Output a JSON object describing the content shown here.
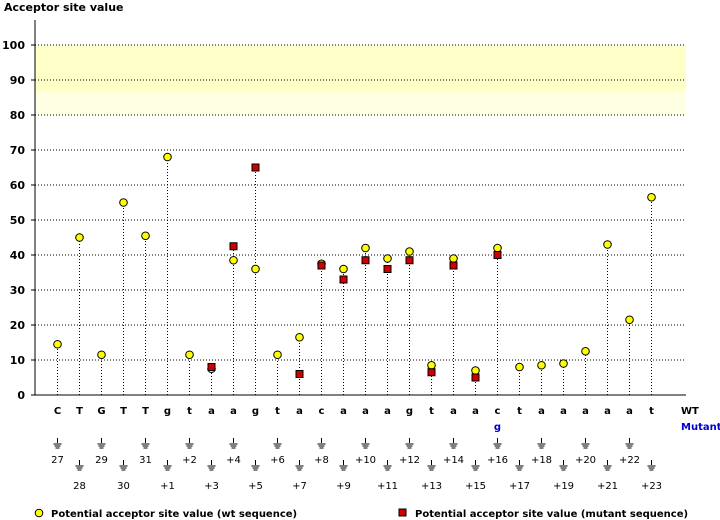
{
  "chart_data": {
    "type": "scatter",
    "title": "Acceptor site value",
    "ylim": [
      0,
      100
    ],
    "yticks": [
      0,
      10,
      20,
      30,
      40,
      50,
      60,
      70,
      80,
      90,
      100
    ],
    "highlight_band": [
      80,
      100
    ],
    "row_labels": {
      "wt": "WT",
      "mutant": "Mutant"
    },
    "positions": [
      {
        "pos": "27",
        "wt": "C",
        "wt_value": 14.5,
        "mut_value": null
      },
      {
        "pos": "28",
        "wt": "T",
        "wt_value": 45,
        "mut_value": null
      },
      {
        "pos": "29",
        "wt": "G",
        "wt_value": 11.5,
        "mut_value": null
      },
      {
        "pos": "30",
        "wt": "T",
        "wt_value": 55,
        "mut_value": null
      },
      {
        "pos": "31",
        "wt": "T",
        "wt_value": 45.5,
        "mut_value": null
      },
      {
        "pos": "+1",
        "wt": "g",
        "wt_value": 68,
        "mut_value": null
      },
      {
        "pos": "+2",
        "wt": "t",
        "wt_value": 11.5,
        "mut_value": null
      },
      {
        "pos": "+3",
        "wt": "a",
        "wt_value": 7.5,
        "mut_value": 8
      },
      {
        "pos": "+4",
        "wt": "a",
        "wt_value": 38.5,
        "mut_value": 42.5
      },
      {
        "pos": "+5",
        "wt": "g",
        "wt_value": 36,
        "mut_value": 65
      },
      {
        "pos": "+6",
        "wt": "t",
        "wt_value": 11.5,
        "mut_value": null
      },
      {
        "pos": "+7",
        "wt": "a",
        "wt_value": 16.5,
        "mut_value": 6
      },
      {
        "pos": "+8",
        "wt": "c",
        "wt_value": 37.5,
        "mut_value": 37
      },
      {
        "pos": "+9",
        "wt": "a",
        "wt_value": 36,
        "mut_value": 33
      },
      {
        "pos": "+10",
        "wt": "a",
        "wt_value": 42,
        "mut_value": 38.5
      },
      {
        "pos": "+11",
        "wt": "a",
        "wt_value": 39,
        "mut_value": 36
      },
      {
        "pos": "+12",
        "wt": "g",
        "wt_value": 41,
        "mut_value": 38.5
      },
      {
        "pos": "+13",
        "wt": "t",
        "wt_value": 8.5,
        "mut_value": 6.5
      },
      {
        "pos": "+14",
        "wt": "a",
        "wt_value": 39,
        "mut_value": 37
      },
      {
        "pos": "+15",
        "wt": "a",
        "wt_value": 7,
        "mut_value": 5
      },
      {
        "pos": "+16",
        "wt": "c",
        "mut": "g",
        "wt_value": 42,
        "mut_value": 40
      },
      {
        "pos": "+17",
        "wt": "t",
        "wt_value": 8,
        "mut_value": null
      },
      {
        "pos": "+18",
        "wt": "a",
        "wt_value": 8.5,
        "mut_value": null
      },
      {
        "pos": "+19",
        "wt": "a",
        "wt_value": 9,
        "mut_value": null
      },
      {
        "pos": "+20",
        "wt": "a",
        "wt_value": 12.5,
        "mut_value": null
      },
      {
        "pos": "+21",
        "wt": "a",
        "wt_value": 43,
        "mut_value": null
      },
      {
        "pos": "+22",
        "wt": "a",
        "wt_value": 21.5,
        "mut_value": null
      },
      {
        "pos": "+23",
        "wt": "t",
        "wt_value": 56.5,
        "mut_value": null
      }
    ],
    "legend": [
      {
        "name": "Potential acceptor site value (wt sequence)",
        "marker": "circle",
        "color": "#ffff00"
      },
      {
        "name": "Potential acceptor site value (mutant sequence)",
        "marker": "square",
        "color": "#cc0000"
      }
    ]
  }
}
